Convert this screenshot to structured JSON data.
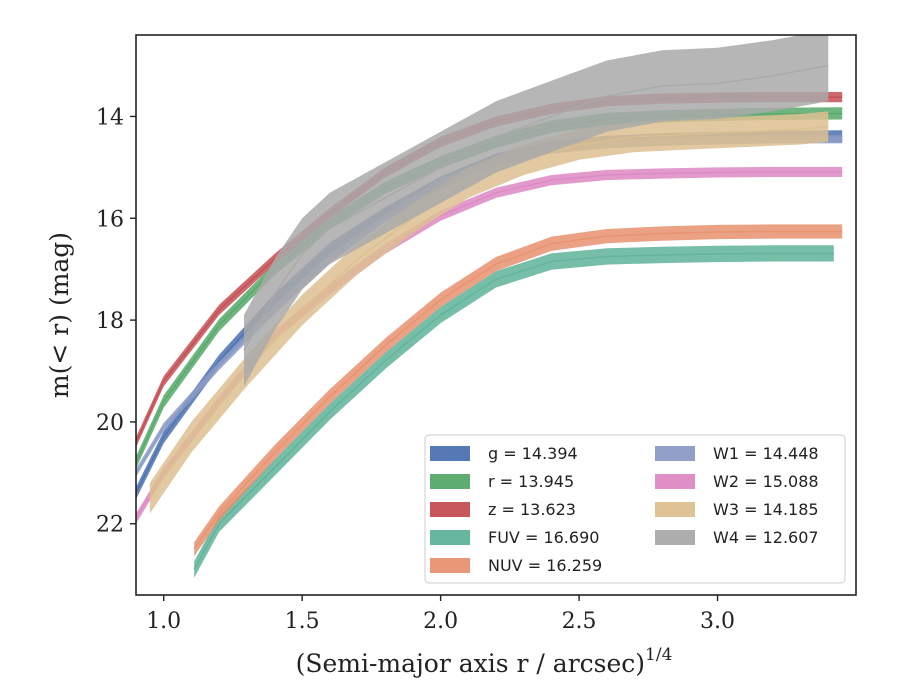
{
  "chart_data": {
    "type": "line",
    "xlabel": "(Semi-major axis r / arcsec)",
    "xlabel_sup": "1/4",
    "ylabel": "m(< r) (mag)",
    "xlim": [
      0.9,
      3.5
    ],
    "ylim": [
      23.4,
      12.4
    ],
    "y_inverted": true,
    "grid": false,
    "legend_placement": "lower-right",
    "xticks": [
      1.0,
      1.5,
      2.0,
      2.5,
      3.0
    ],
    "yticks": [
      14,
      16,
      18,
      20,
      22
    ],
    "xtick_labels": [
      "1.0",
      "1.5",
      "2.0",
      "2.5",
      "3.0"
    ],
    "ytick_labels": [
      "14",
      "16",
      "18",
      "20",
      "22"
    ],
    "series": [
      {
        "key": "g",
        "label": "g = 14.394",
        "color": "#4c72b0",
        "band_width": 0.12,
        "x": [
          0.9,
          1.0,
          1.2,
          1.4,
          1.6,
          1.8,
          2.0,
          2.2,
          2.4,
          2.6,
          2.8,
          3.0,
          3.2,
          3.45
        ],
        "y": [
          21.4,
          20.3,
          18.8,
          17.6,
          16.6,
          15.9,
          15.3,
          14.85,
          14.6,
          14.5,
          14.45,
          14.42,
          14.4,
          14.39
        ]
      },
      {
        "key": "r",
        "label": "r = 13.945",
        "color": "#55a868",
        "band_width": 0.12,
        "x": [
          0.9,
          1.0,
          1.2,
          1.4,
          1.6,
          1.8,
          2.0,
          2.2,
          2.4,
          2.6,
          2.8,
          3.0,
          3.2,
          3.45
        ],
        "y": [
          20.8,
          19.6,
          18.1,
          17.0,
          16.1,
          15.4,
          14.9,
          14.5,
          14.2,
          14.05,
          14.0,
          13.97,
          13.95,
          13.94
        ]
      },
      {
        "key": "z",
        "label": "z = 13.623",
        "color": "#c44e52",
        "band_width": 0.1,
        "x": [
          0.9,
          1.0,
          1.2,
          1.4,
          1.6,
          1.8,
          2.0,
          2.2,
          2.4,
          2.6,
          2.8,
          3.0,
          3.2,
          3.45
        ],
        "y": [
          20.4,
          19.2,
          17.8,
          16.8,
          15.9,
          15.1,
          14.5,
          14.1,
          13.85,
          13.7,
          13.65,
          13.63,
          13.62,
          13.62
        ]
      },
      {
        "key": "FUV",
        "label": "FUV = 16.690",
        "color": "#5fb39a",
        "band_width": 0.16,
        "x": [
          1.11,
          1.2,
          1.4,
          1.6,
          1.8,
          2.0,
          2.2,
          2.4,
          2.6,
          2.8,
          3.0,
          3.2,
          3.42
        ],
        "y": [
          22.9,
          22.0,
          20.9,
          19.8,
          18.8,
          17.9,
          17.2,
          16.85,
          16.75,
          16.72,
          16.7,
          16.69,
          16.69
        ]
      },
      {
        "key": "NUV",
        "label": "NUV = 16.259",
        "color": "#e8916f",
        "band_width": 0.14,
        "x": [
          1.11,
          1.2,
          1.4,
          1.6,
          1.8,
          2.0,
          2.2,
          2.4,
          2.6,
          2.8,
          3.0,
          3.2,
          3.45
        ],
        "y": [
          22.5,
          21.8,
          20.6,
          19.5,
          18.5,
          17.6,
          16.9,
          16.5,
          16.35,
          16.3,
          16.27,
          16.26,
          16.26
        ]
      },
      {
        "key": "W1",
        "label": "W1 = 14.448",
        "color": "#8c9bc6",
        "band_width": 0.08,
        "x": [
          0.9,
          1.0,
          1.2,
          1.4,
          1.6,
          1.8,
          2.0,
          2.2,
          2.4,
          2.6,
          2.8,
          3.0,
          3.2,
          3.45
        ],
        "y": [
          21.0,
          20.1,
          18.9,
          17.8,
          16.8,
          16.0,
          15.3,
          14.9,
          14.65,
          14.55,
          14.5,
          14.47,
          14.45,
          14.45
        ]
      },
      {
        "key": "W2",
        "label": "W2 = 15.088",
        "color": "#dd88c3",
        "band_width": 0.1,
        "x": [
          0.9,
          1.0,
          1.2,
          1.4,
          1.6,
          1.8,
          2.0,
          2.2,
          2.4,
          2.6,
          2.8,
          3.0,
          3.2,
          3.45
        ],
        "y": [
          21.9,
          21.0,
          19.6,
          18.3,
          17.4,
          16.6,
          15.95,
          15.5,
          15.25,
          15.15,
          15.12,
          15.1,
          15.09,
          15.09
        ]
      },
      {
        "key": "W3",
        "label": "W3 = 14.185",
        "color": "#ddbf90",
        "band_width": 0.3,
        "x": [
          0.95,
          1.1,
          1.3,
          1.5,
          1.7,
          1.9,
          2.1,
          2.3,
          2.5,
          2.7,
          2.9,
          3.1,
          3.3,
          3.4
        ],
        "y": [
          21.5,
          20.3,
          19.0,
          17.8,
          16.8,
          16.0,
          15.3,
          14.85,
          14.55,
          14.4,
          14.35,
          14.3,
          14.25,
          14.2
        ]
      },
      {
        "key": "W4",
        "label": "W4 = 12.607",
        "color": "#a9a9a9",
        "band_width": 0.7,
        "x": [
          1.29,
          1.4,
          1.5,
          1.6,
          1.7,
          1.8,
          1.9,
          2.0,
          2.2,
          2.4,
          2.6,
          2.8,
          3.0,
          3.2,
          3.4
        ],
        "y": [
          18.6,
          17.5,
          16.7,
          16.2,
          15.9,
          15.6,
          15.3,
          15.0,
          14.4,
          14.0,
          13.6,
          13.4,
          13.35,
          13.2,
          13.0
        ]
      }
    ]
  }
}
